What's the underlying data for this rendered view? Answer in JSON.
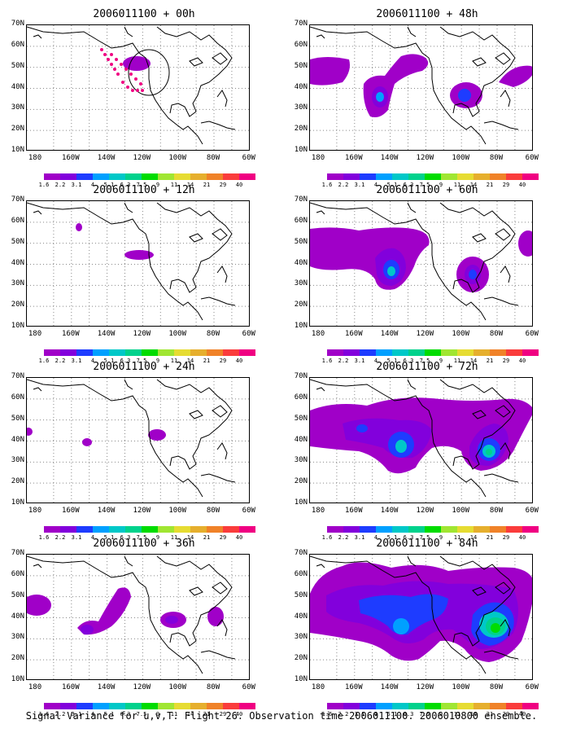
{
  "panels": [
    {
      "title": "2006011100 + 00h"
    },
    {
      "title": "2006011100 + 12h"
    },
    {
      "title": "2006011100 + 24h"
    },
    {
      "title": "2006011100 + 36h"
    },
    {
      "title": "2006011100 + 48h"
    },
    {
      "title": "2006011100 + 60h"
    },
    {
      "title": "2006011100 + 72h"
    },
    {
      "title": "2006011100 + 84h"
    }
  ],
  "axes": {
    "ylabels": [
      "70N",
      "60N",
      "50N",
      "40N",
      "30N",
      "20N",
      "10N"
    ],
    "xlabels": [
      "180",
      "160W",
      "140W",
      "120W",
      "100W",
      "80W",
      "60W"
    ]
  },
  "colorbar": {
    "labels": [
      "1.6",
      "2.2",
      "3.1",
      "4",
      "5.1",
      "6.3",
      "7.5",
      "9",
      "11",
      "14",
      "21",
      "29",
      "40"
    ],
    "colors": [
      "#a000c8",
      "#8200dc",
      "#1e3cff",
      "#00a0ff",
      "#00c8c8",
      "#00d28c",
      "#00dc00",
      "#a0e632",
      "#e6dc32",
      "#e6af2d",
      "#f08228",
      "#fa3c3c",
      "#f00082"
    ]
  },
  "caption": "Signal Variance for u,v,T. Flight 26. Observation time 2006011100. 2006010800 ensemble."
}
